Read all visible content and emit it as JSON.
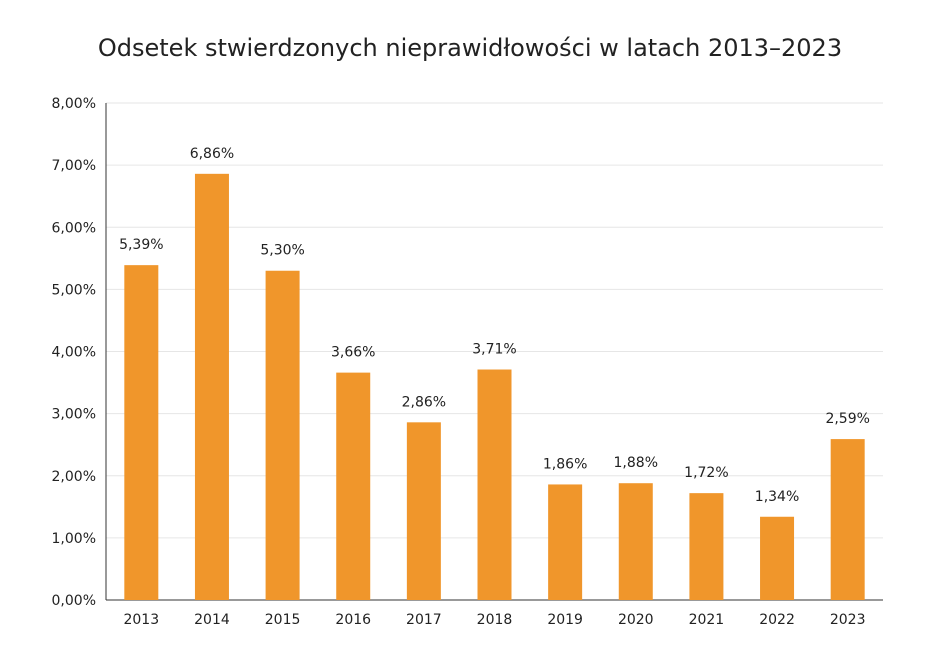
{
  "chart_data": {
    "type": "bar",
    "title": "Odsetek stwierdzonych nieprawidłowości w latach 2013–2023",
    "xlabel": "",
    "ylabel": "",
    "categories": [
      "2013",
      "2014",
      "2015",
      "2016",
      "2017",
      "2018",
      "2019",
      "2020",
      "2021",
      "2022",
      "2023"
    ],
    "values": [
      5.39,
      6.86,
      5.3,
      3.66,
      2.86,
      3.71,
      1.86,
      1.88,
      1.72,
      1.34,
      2.59
    ],
    "value_labels": [
      "5,39%",
      "6,86%",
      "5,30%",
      "3,66%",
      "2,86%",
      "3,71%",
      "1,86%",
      "1,88%",
      "1,72%",
      "1,34%",
      "2,59%"
    ],
    "ylim": [
      0,
      8
    ],
    "y_ticks": [
      0,
      1,
      2,
      3,
      4,
      5,
      6,
      7,
      8
    ],
    "y_tick_labels": [
      "0,00%",
      "1,00%",
      "2,00%",
      "3,00%",
      "4,00%",
      "5,00%",
      "6,00%",
      "7,00%",
      "8,00%"
    ],
    "grid": true,
    "legend": "none",
    "colors": {
      "bar": "#F0962B",
      "grid": "#E6E6E6",
      "axis": "#333333",
      "text": "#222222"
    }
  }
}
